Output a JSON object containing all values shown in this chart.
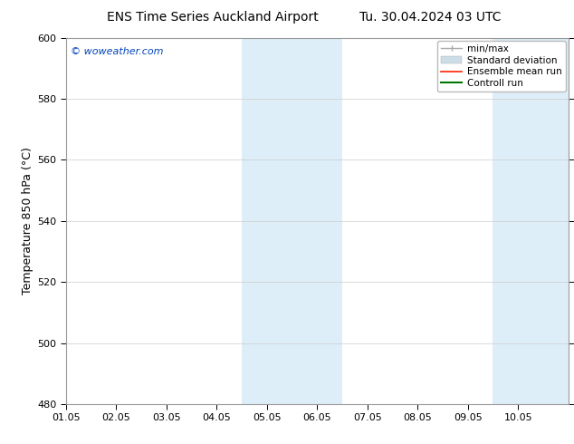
{
  "title_left": "ENS Time Series Auckland Airport",
  "title_right": "Tu. 30.04.2024 03 UTC",
  "ylabel": "Temperature 850 hPa (°C)",
  "xlim_start": 0.0,
  "xlim_end": 10.0,
  "ylim_bottom": 480,
  "ylim_top": 600,
  "yticks": [
    480,
    500,
    520,
    540,
    560,
    580,
    600
  ],
  "xtick_labels": [
    "01.05",
    "02.05",
    "03.05",
    "04.05",
    "05.05",
    "06.05",
    "07.05",
    "08.05",
    "09.05",
    "10.05"
  ],
  "xtick_positions": [
    0,
    1,
    2,
    3,
    4,
    5,
    6,
    7,
    8,
    9
  ],
  "shaded_bands": [
    {
      "x_start": 3.5,
      "x_end": 5.5
    },
    {
      "x_start": 8.5,
      "x_end": 10.0
    }
  ],
  "shaded_color": "#ddeef8",
  "background_color": "#ffffff",
  "watermark_text": "© woweather.com",
  "watermark_color": "#0044bb",
  "legend_items": [
    {
      "label": "min/max",
      "type": "minmax",
      "color": "#aaaaaa",
      "lw": 1.0
    },
    {
      "label": "Standard deviation",
      "type": "patch",
      "color": "#ccdde8",
      "lw": 6
    },
    {
      "label": "Ensemble mean run",
      "type": "line",
      "color": "#ff2200",
      "lw": 1.2
    },
    {
      "label": "Controll run",
      "type": "line",
      "color": "#007700",
      "lw": 1.5
    }
  ],
  "grid_color": "#cccccc",
  "spine_color": "#999999",
  "title_fontsize": 10,
  "axis_label_fontsize": 9,
  "tick_fontsize": 8,
  "legend_fontsize": 7.5,
  "watermark_fontsize": 8
}
